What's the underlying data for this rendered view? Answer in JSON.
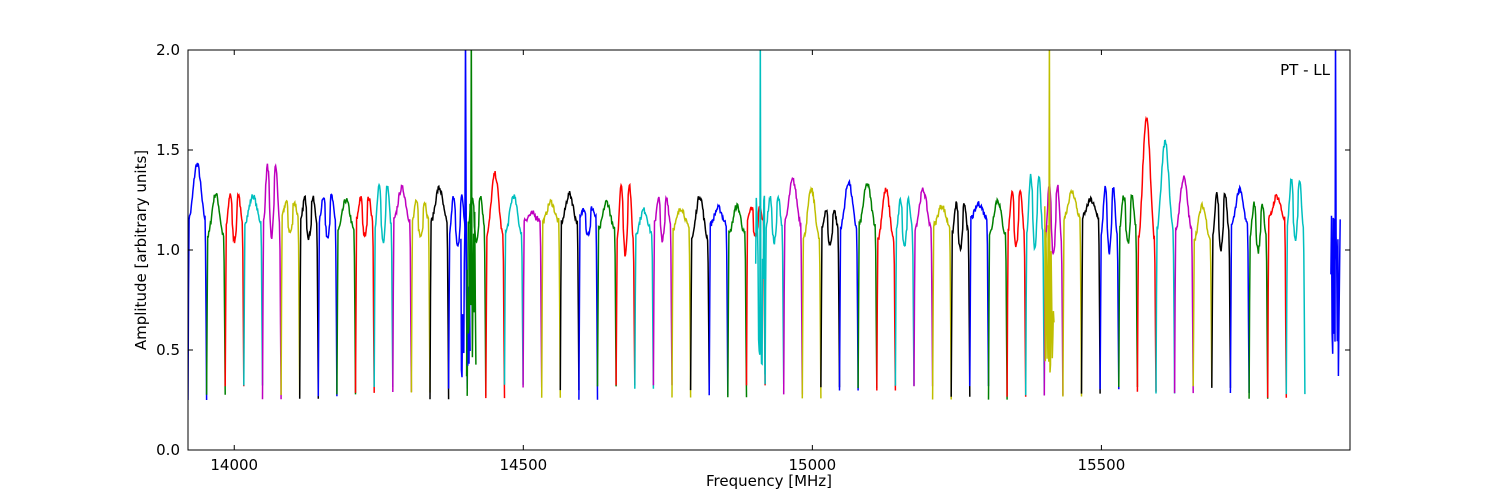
{
  "chart_data": {
    "type": "line",
    "annotation": "PT - LL",
    "xlabel": "Frequency [MHz]",
    "ylabel": "Amplitude [arbitrary units]",
    "xlim": [
      13920,
      15930
    ],
    "ylim": [
      0.0,
      2.0
    ],
    "x_ticks": [
      14000,
      14500,
      15000,
      15500
    ],
    "x_tick_labels": [
      "14000",
      "14500",
      "15000",
      "15500"
    ],
    "y_ticks": [
      0.0,
      0.5,
      1.0,
      1.5,
      2.0
    ],
    "y_tick_labels": [
      "0.0",
      "0.5",
      "1.0",
      "1.5",
      "2.0"
    ],
    "grid": false,
    "legend": "none",
    "segment_width_mhz": 32.2,
    "color_cycle": [
      "#0000ff",
      "#008000",
      "#ff0000",
      "#00bfbf",
      "#bf00bf",
      "#bfbf00",
      "#000000"
    ],
    "segment_peaks": [
      1.43,
      1.28,
      1.28,
      1.27,
      1.42,
      1.24,
      1.26,
      1.27,
      1.25,
      1.26,
      1.32,
      1.31,
      1.24,
      1.31,
      1.27,
      1.27,
      1.38,
      1.27,
      1.18,
      1.24,
      1.28,
      1.21,
      1.24,
      1.33,
      1.2,
      1.26,
      1.21,
      1.27,
      1.21,
      1.22,
      1.21,
      1.26,
      1.35,
      1.3,
      1.2,
      1.34,
      1.33,
      1.3,
      1.25,
      1.3,
      1.22,
      1.23,
      1.23,
      1.25,
      1.29,
      1.37,
      1.32,
      1.29,
      1.25,
      1.31,
      1.27,
      1.66,
      1.54,
      1.36,
      1.22,
      1.28,
      1.3,
      1.23,
      1.27,
      1.35
    ],
    "spikes": [
      {
        "x": 14400,
        "y_top": 2.0,
        "series_color": "#0000ff"
      },
      {
        "x": 14410,
        "y_top": 2.0,
        "series_color": "#008000"
      },
      {
        "x": 14910,
        "y_top": 2.0,
        "series_color": "#00bfbf"
      },
      {
        "x": 15410,
        "y_top": 2.0,
        "series_color": "#bfbf00"
      },
      {
        "x": 15905,
        "y_top": 2.0,
        "series_color": "#0000ff"
      }
    ]
  }
}
